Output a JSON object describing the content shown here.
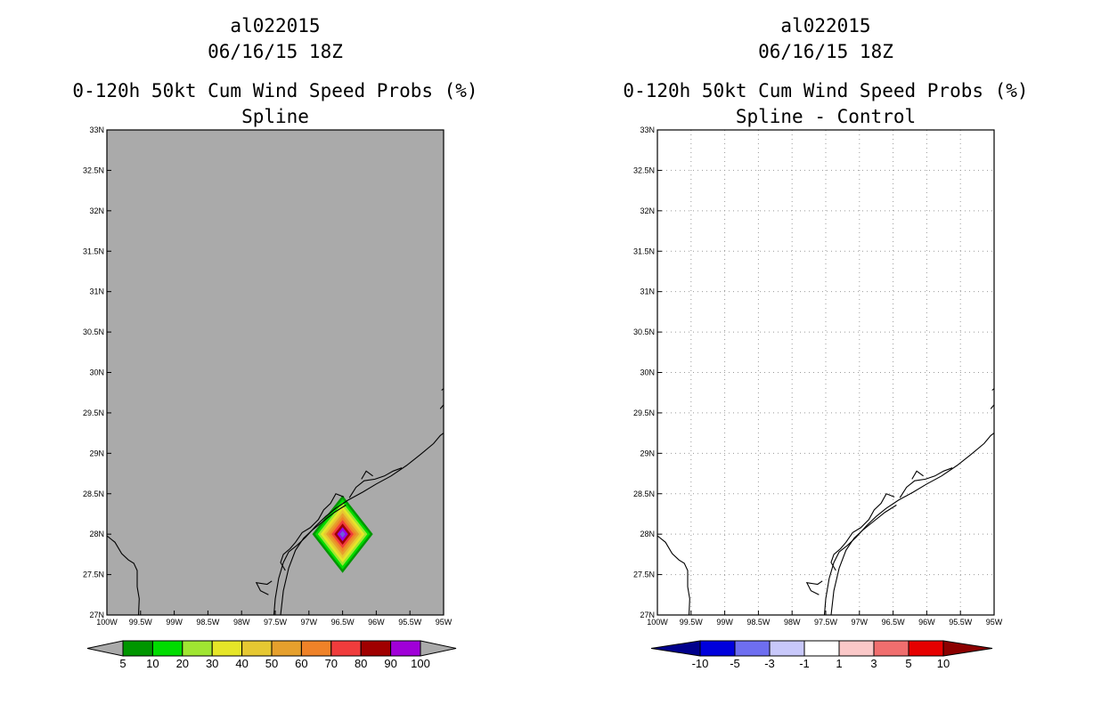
{
  "chart_data": [
    {
      "type": "heatmap",
      "id": "left",
      "title_lines": [
        "al022015",
        "06/16/15 18Z",
        "0-120h 50kt Cum Wind Speed Probs (%)",
        "Spline"
      ],
      "xlabel": "",
      "ylabel": "",
      "xlim": [
        -100,
        -95
      ],
      "ylim": [
        27,
        33
      ],
      "x_ticks": [
        -100,
        -99.5,
        -99,
        -98.5,
        -98,
        -97.5,
        -97,
        -96.5,
        -96,
        -95.5,
        -95
      ],
      "x_tick_labels": [
        "100W",
        "99.5W",
        "99W",
        "98.5W",
        "98W",
        "97.5W",
        "97W",
        "96.5W",
        "96W",
        "95.5W",
        "95W"
      ],
      "y_ticks": [
        27,
        27.5,
        28,
        28.5,
        29,
        29.5,
        30,
        30.5,
        31,
        31.5,
        32,
        32.5,
        33
      ],
      "y_tick_labels": [
        "27N",
        "27.5N",
        "28N",
        "28.5N",
        "29N",
        "29.5N",
        "30N",
        "30.5N",
        "31N",
        "31.5N",
        "32N",
        "32.5N",
        "33N"
      ],
      "grid": false,
      "background": "#aaaaaa",
      "field": {
        "shape": "diamond",
        "center_lon": -96.5,
        "center_lat": 28.0,
        "half_width_lon": 0.45,
        "half_height_lat": 0.48,
        "levels": [
          5,
          10,
          20,
          30,
          40,
          50,
          60,
          70,
          80,
          90,
          100
        ],
        "level_fill_colors": [
          "#009600",
          "#00dc00",
          "#a0e632",
          "#e6e628",
          "#e6c832",
          "#e6a02d",
          "#ef8228",
          "#f03c3c",
          "#a00000",
          "#9b00e6",
          "#6e5adc"
        ],
        "center_value": 100
      },
      "colorbar": {
        "labels": [
          "5",
          "10",
          "20",
          "30",
          "40",
          "50",
          "60",
          "70",
          "80",
          "90",
          "100"
        ],
        "colors": [
          "#009600",
          "#00dc00",
          "#a0e632",
          "#e6e628",
          "#e6c832",
          "#e6a02d",
          "#ef8228",
          "#f03c3c",
          "#a00000",
          "#a000d8"
        ],
        "low_extend_color": "#aaaaaa",
        "high_extend_color": "#aaaaaa"
      }
    },
    {
      "type": "heatmap",
      "id": "right",
      "title_lines": [
        "al022015",
        "06/16/15 18Z",
        "0-120h 50kt Cum Wind Speed Probs (%)",
        "Spline - Control"
      ],
      "xlabel": "",
      "ylabel": "",
      "xlim": [
        -100,
        -95
      ],
      "ylim": [
        27,
        33
      ],
      "x_ticks": [
        -100,
        -99.5,
        -99,
        -98.5,
        -98,
        -97.5,
        -97,
        -96.5,
        -96,
        -95.5,
        -95
      ],
      "x_tick_labels": [
        "100W",
        "99.5W",
        "99W",
        "98.5W",
        "98W",
        "97.5W",
        "97W",
        "96.5W",
        "96W",
        "95.5W",
        "95W"
      ],
      "y_ticks": [
        27,
        27.5,
        28,
        28.5,
        29,
        29.5,
        30,
        30.5,
        31,
        31.5,
        32,
        32.5,
        33
      ],
      "y_tick_labels": [
        "27N",
        "27.5N",
        "28N",
        "28.5N",
        "29N",
        "29.5N",
        "30N",
        "30.5N",
        "31N",
        "31.5N",
        "32N",
        "32.5N",
        "33N"
      ],
      "grid": true,
      "background": "#ffffff",
      "field": null,
      "colorbar": {
        "labels": [
          "-10",
          "-5",
          "-3",
          "-1",
          "1",
          "3",
          "5",
          "10"
        ],
        "colors": [
          "#0000dc",
          "#6e6ef0",
          "#c8c8fa",
          "#ffffff",
          "#fac8c8",
          "#f06e6e",
          "#e60000"
        ],
        "low_extend_color": "#00008c",
        "high_extend_color": "#8c0000"
      }
    }
  ],
  "coastline": [
    [
      [
        -100,
        27.98
      ],
      [
        -99.88,
        27.9
      ],
      [
        -99.78,
        27.76
      ],
      [
        -99.68,
        27.68
      ],
      [
        -99.6,
        27.64
      ],
      [
        -99.55,
        27.55
      ],
      [
        -99.55,
        27.35
      ],
      [
        -99.52,
        27.2
      ],
      [
        -99.53,
        27.0
      ]
    ],
    [
      [
        -97.52,
        27.0
      ],
      [
        -97.5,
        27.2
      ],
      [
        -97.45,
        27.45
      ],
      [
        -97.38,
        27.65
      ],
      [
        -97.3,
        27.78
      ],
      [
        -97.18,
        27.86
      ],
      [
        -97.05,
        27.96
      ],
      [
        -96.9,
        28.1
      ],
      [
        -96.75,
        28.22
      ],
      [
        -96.6,
        28.32
      ],
      [
        -96.42,
        28.42
      ],
      [
        -96.2,
        28.52
      ],
      [
        -96.0,
        28.62
      ],
      [
        -95.78,
        28.72
      ],
      [
        -95.55,
        28.85
      ],
      [
        -95.35,
        28.98
      ],
      [
        -95.15,
        29.12
      ],
      [
        -95.05,
        29.22
      ],
      [
        -95.0,
        29.25
      ]
    ],
    [
      [
        -97.42,
        27.0
      ],
      [
        -97.38,
        27.3
      ],
      [
        -97.3,
        27.58
      ],
      [
        -97.2,
        27.8
      ],
      [
        -97.08,
        27.95
      ],
      [
        -96.95,
        28.05
      ],
      [
        -96.8,
        28.15
      ],
      [
        -96.62,
        28.27
      ],
      [
        -96.45,
        28.36
      ]
    ],
    [
      [
        -97.6,
        27.25
      ],
      [
        -97.72,
        27.3
      ],
      [
        -97.78,
        27.4
      ],
      [
        -97.62,
        27.38
      ],
      [
        -97.55,
        27.42
      ]
    ],
    [
      [
        -97.35,
        27.55
      ],
      [
        -97.42,
        27.65
      ],
      [
        -97.38,
        27.75
      ],
      [
        -97.28,
        27.82
      ],
      [
        -97.2,
        27.9
      ],
      [
        -97.1,
        28.02
      ],
      [
        -96.98,
        28.08
      ],
      [
        -96.86,
        28.18
      ],
      [
        -96.78,
        28.3
      ],
      [
        -96.68,
        28.38
      ],
      [
        -96.6,
        28.5
      ],
      [
        -96.48,
        28.46
      ]
    ],
    [
      [
        -96.4,
        28.45
      ],
      [
        -96.3,
        28.58
      ],
      [
        -96.18,
        28.66
      ],
      [
        -96.02,
        28.68
      ],
      [
        -95.88,
        28.72
      ],
      [
        -95.75,
        28.78
      ],
      [
        -95.62,
        28.82
      ]
    ],
    [
      [
        -96.22,
        28.68
      ],
      [
        -96.15,
        28.78
      ],
      [
        -96.05,
        28.72
      ]
    ],
    [
      [
        -95.05,
        29.55
      ],
      [
        -95.0,
        29.6
      ]
    ],
    [
      [
        -95.03,
        29.78
      ],
      [
        -95.0,
        29.8
      ]
    ]
  ],
  "colors": {
    "frame": "#000000",
    "grid": "#999999",
    "coast": "#000000"
  }
}
